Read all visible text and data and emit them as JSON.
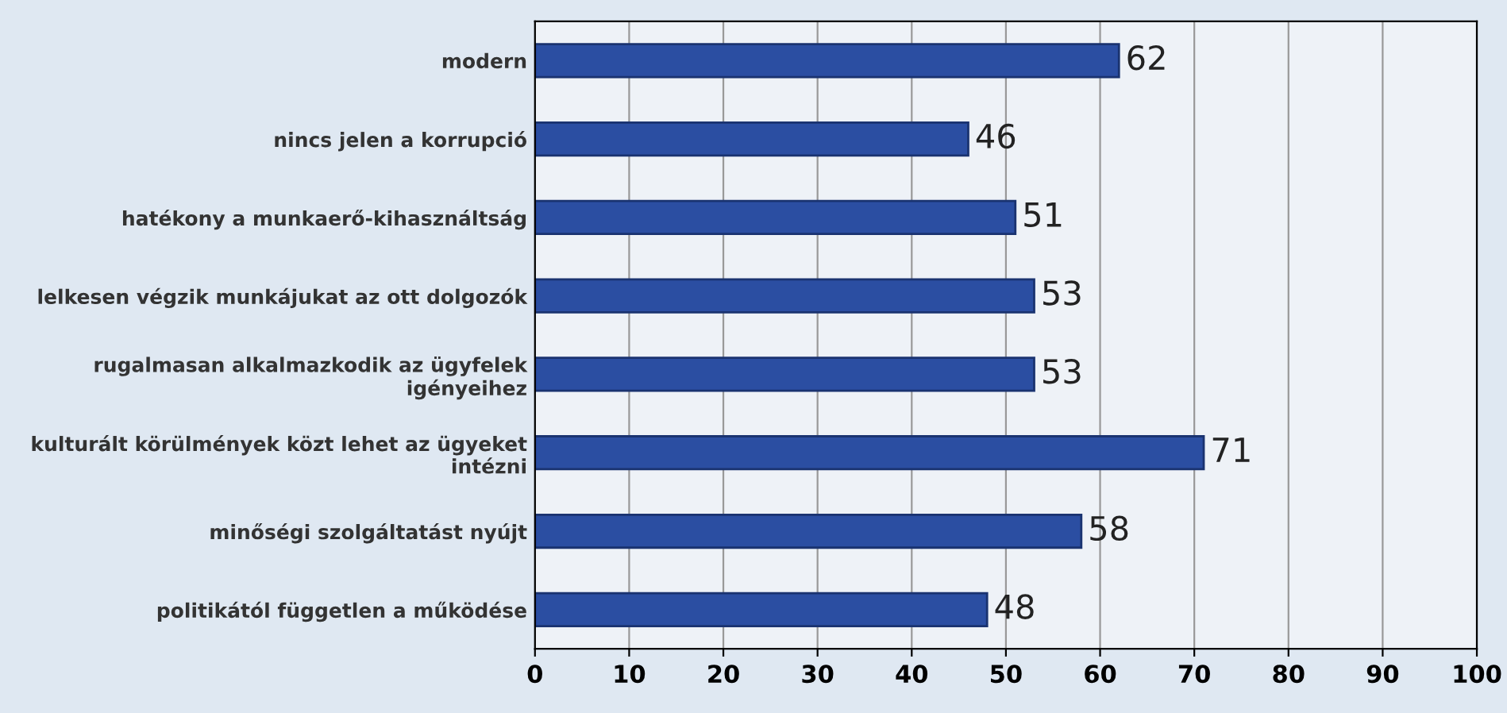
{
  "chart_data": {
    "type": "bar",
    "orientation": "horizontal",
    "categories": [
      "modern",
      "nincs jelen a korrupció",
      "hatékony a munkaerő-kihasználtság",
      "lelkesen végzik munkájukat az ott dolgozók",
      "rugalmasan alkalmazkodik az ügyfelek\nigényeihez",
      "kulturált körülmények közt lehet az ügyeket\nintézni",
      "minőségi szolgáltatást nyújt",
      "politikától független a működése"
    ],
    "values": [
      62,
      46,
      51,
      53,
      53,
      71,
      58,
      48
    ],
    "color": "#2b4ea2",
    "xlim": [
      0,
      100
    ],
    "xticks": [
      0,
      10,
      20,
      30,
      40,
      50,
      60,
      70,
      80,
      90,
      100
    ],
    "grid": "x",
    "data_labels": true
  }
}
